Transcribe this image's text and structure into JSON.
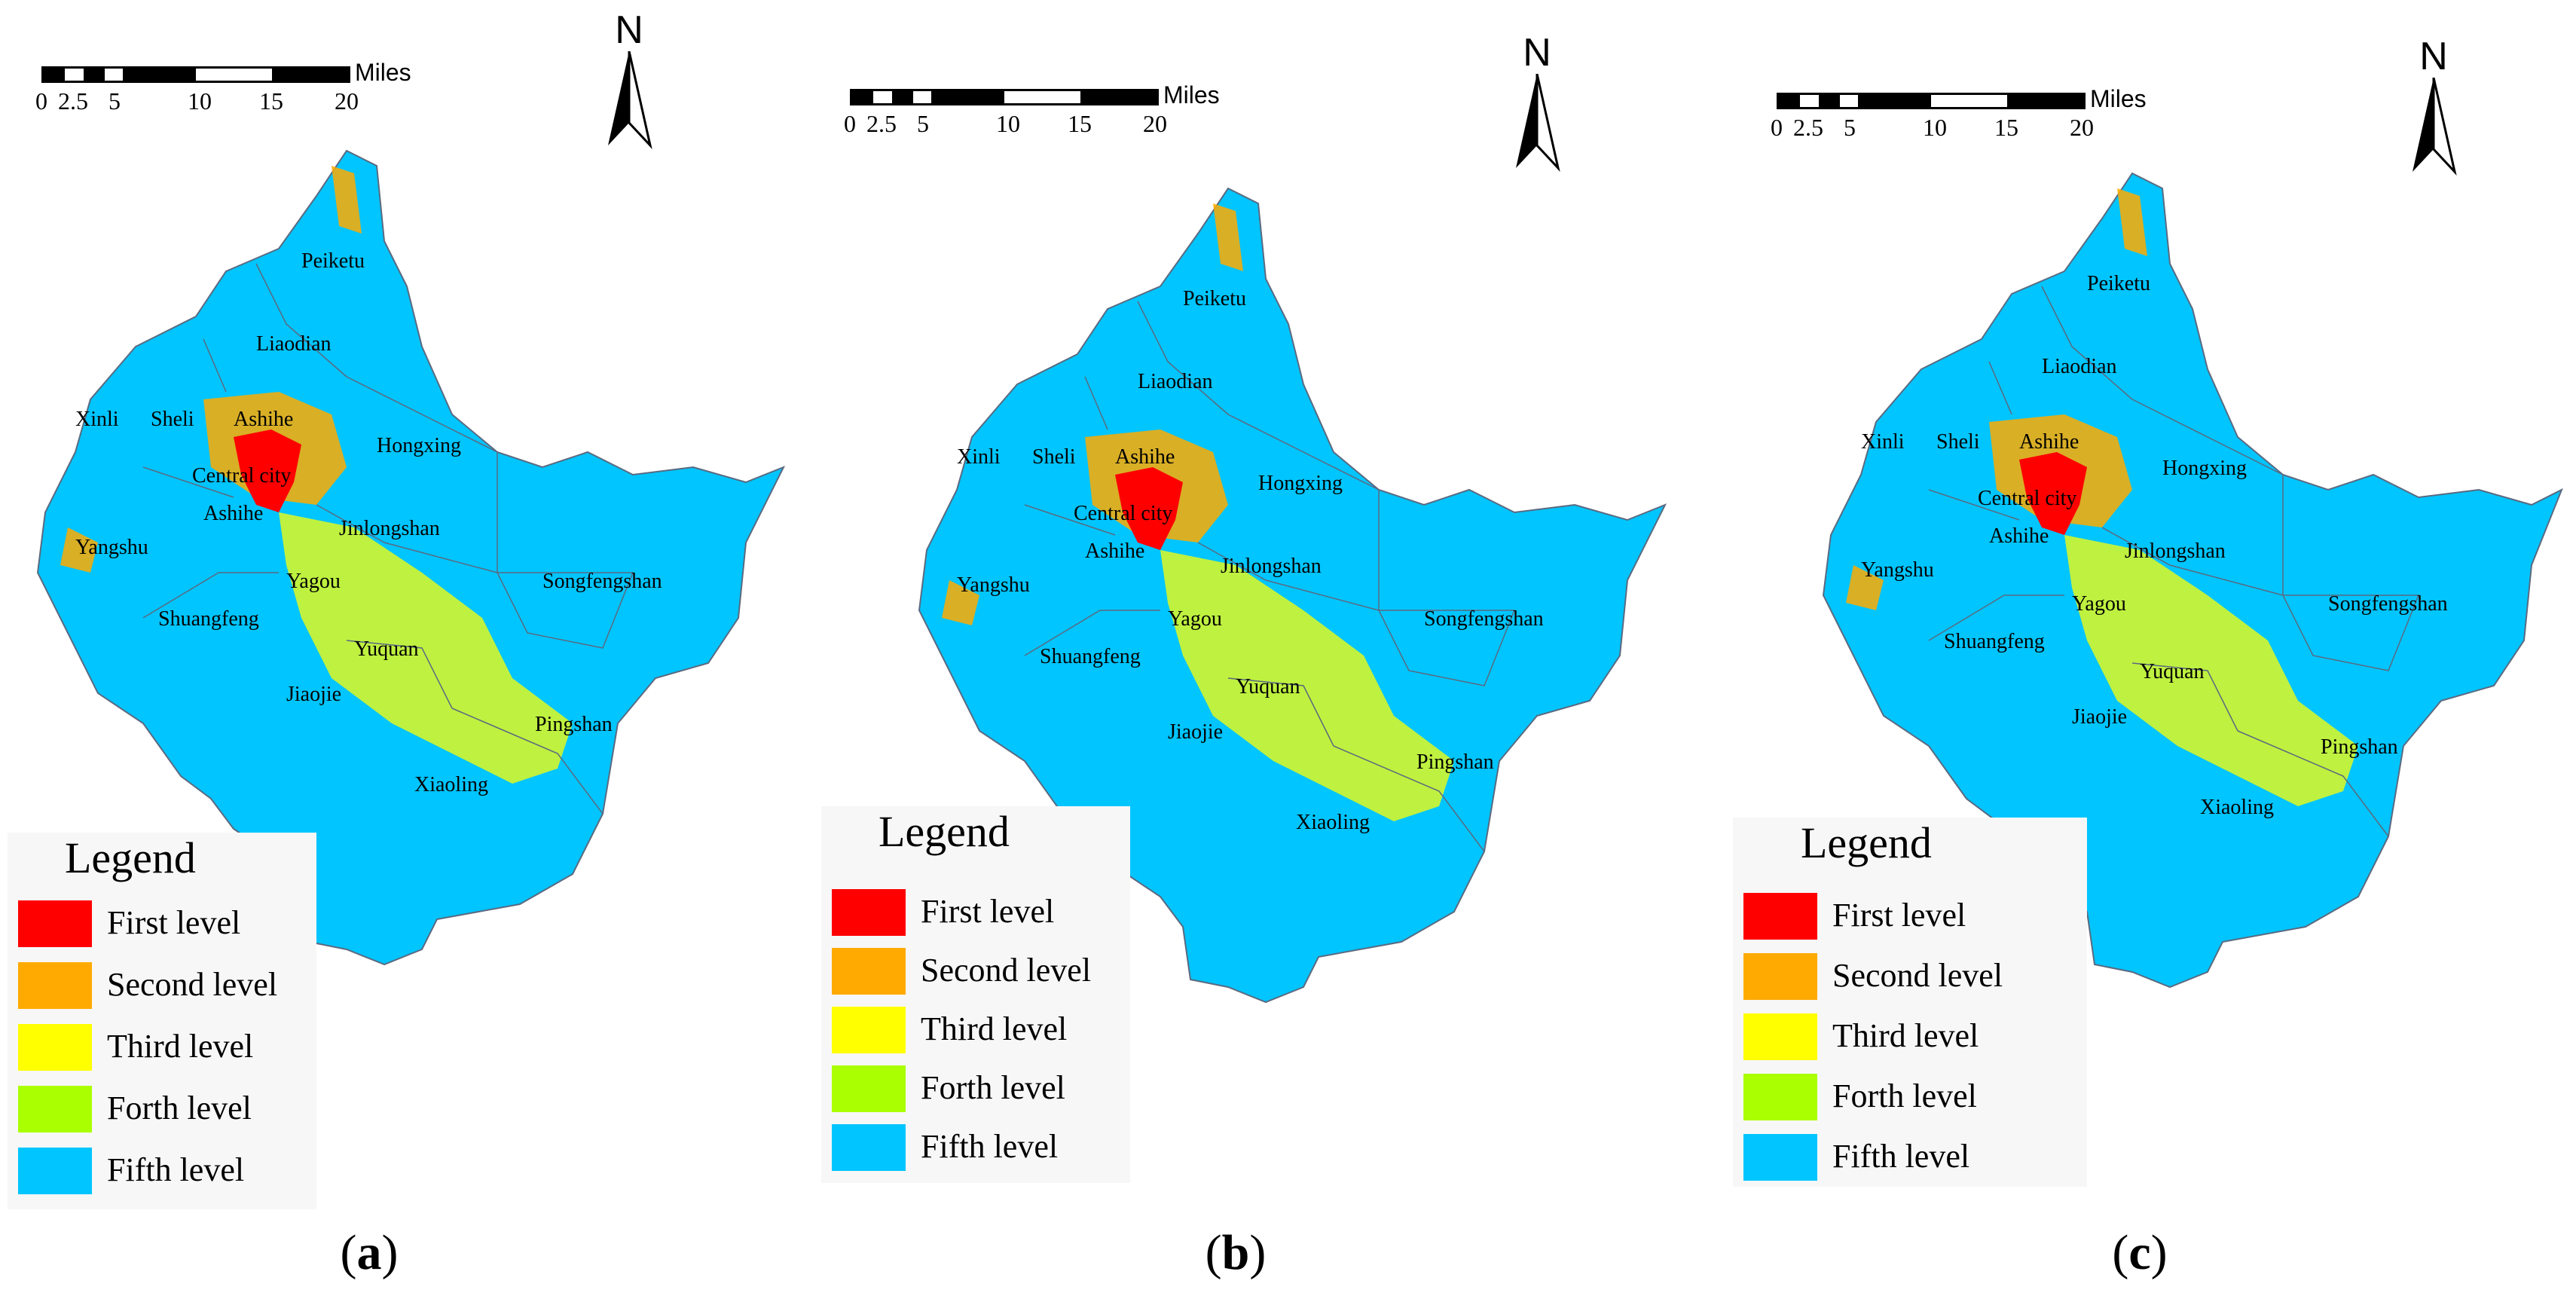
{
  "scale_bar": {
    "unit": "Miles",
    "ticks": [
      "0",
      "2.5",
      "5",
      "10",
      "15",
      "20"
    ]
  },
  "north_arrow": {
    "label": "N"
  },
  "legend": {
    "title": "Legend",
    "items": [
      {
        "label": "First level",
        "color": "#ff0000"
      },
      {
        "label": "Second level",
        "color": "#ffaa00"
      },
      {
        "label": "Third level",
        "color": "#ffff00"
      },
      {
        "label": "Forth level",
        "color": "#aaff00"
      },
      {
        "label": "Fifth level",
        "color": "#00c5ff"
      }
    ]
  },
  "place_names": [
    "Peiketu",
    "Liaodian",
    "Xinli",
    "Sheli",
    "Ashihe",
    "Hongxing",
    "Central city",
    "Ashihe",
    "Jinlongshan",
    "Yangshu",
    "Songfengshan",
    "Yagou",
    "Shuangfeng",
    "Yuquan",
    "Jiaojie",
    "Pingshan",
    "Xiaoling"
  ],
  "panels": [
    {
      "letter": "a"
    },
    {
      "letter": "b"
    },
    {
      "letter": "c"
    }
  ]
}
